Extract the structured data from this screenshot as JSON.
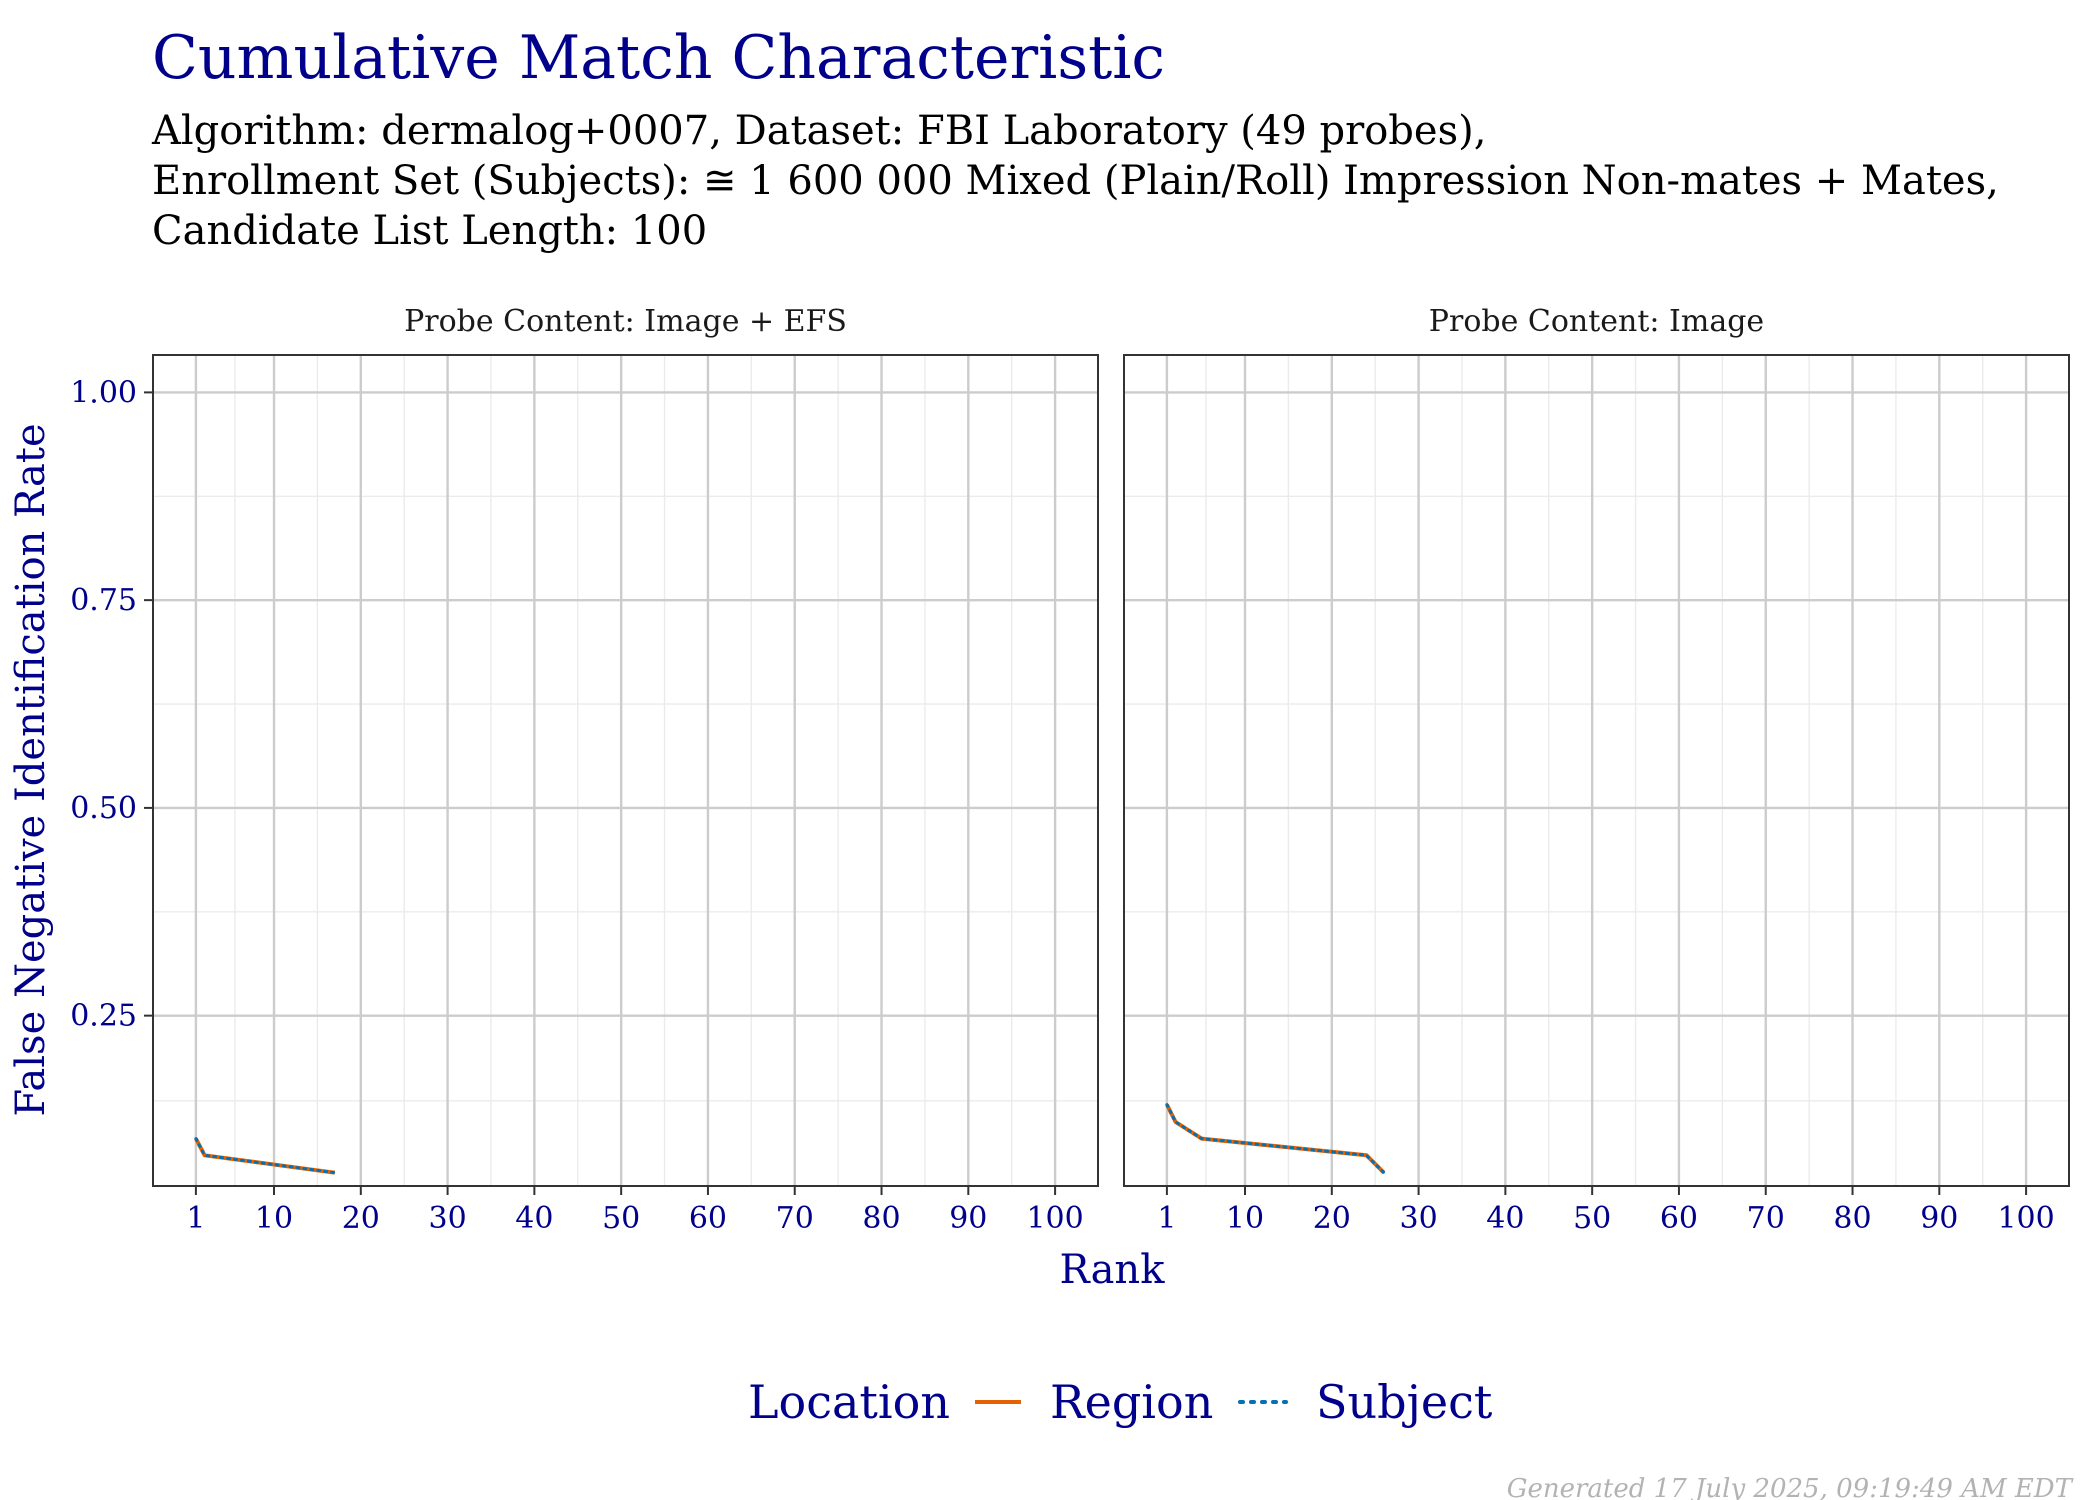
{
  "chart_data": {
    "type": "line",
    "title": "Cumulative Match Characteristic",
    "subtitle_lines": [
      "Algorithm: dermalog+0007, Dataset: FBI Laboratory (49 probes),",
      "Enrollment Set (Subjects):  ≅ 1 600 000 Mixed (Plain/Roll) Impression Non-mates + Mates,",
      "Candidate List Length: 100"
    ],
    "xlabel": "Rank",
    "ylabel": "False Negative Identification Rate",
    "xlim": [
      1,
      100
    ],
    "ylim": [
      0.045,
      1.045
    ],
    "x_ticks": [
      1,
      10,
      20,
      30,
      40,
      50,
      60,
      70,
      80,
      90,
      100
    ],
    "x_tick_labels": [
      "1",
      "10",
      "20",
      "30",
      "40",
      "50",
      "60",
      "70",
      "80",
      "90",
      "100"
    ],
    "y_ticks": [
      0.25,
      0.5,
      0.75,
      1.0
    ],
    "y_tick_labels": [
      "0.25",
      "0.50",
      "0.75",
      "1.00"
    ],
    "grid": true,
    "legend": {
      "title": "Location",
      "placement": "bottom",
      "entries": [
        {
          "label": "Region",
          "color": "#e66101",
          "linestyle": "solid"
        },
        {
          "label": "Subject",
          "color": "#0571b0",
          "linestyle": "dotted"
        }
      ]
    },
    "panels": [
      {
        "label": "Probe Content: Image + EFS",
        "series": [
          {
            "name": "Region",
            "color": "#e66101",
            "linestyle": "solid",
            "x": [
              1,
              2,
              17
            ],
            "y": [
              0.102,
              0.082,
              0.061
            ]
          },
          {
            "name": "Subject",
            "color": "#0571b0",
            "linestyle": "dotted",
            "x": [
              1,
              2,
              17
            ],
            "y": [
              0.102,
              0.082,
              0.061
            ]
          }
        ]
      },
      {
        "label": "Probe Content: Image",
        "series": [
          {
            "name": "Region",
            "color": "#e66101",
            "linestyle": "solid",
            "x": [
              1,
              2,
              5,
              24,
              26
            ],
            "y": [
              0.143,
              0.122,
              0.102,
              0.082,
              0.061
            ]
          },
          {
            "name": "Subject",
            "color": "#0571b0",
            "linestyle": "dotted",
            "x": [
              1,
              2,
              5,
              24,
              26
            ],
            "y": [
              0.143,
              0.122,
              0.102,
              0.082,
              0.061
            ]
          }
        ]
      }
    ]
  },
  "footer": "Generated 17 July 2025, 09:19:49 AM EDT"
}
